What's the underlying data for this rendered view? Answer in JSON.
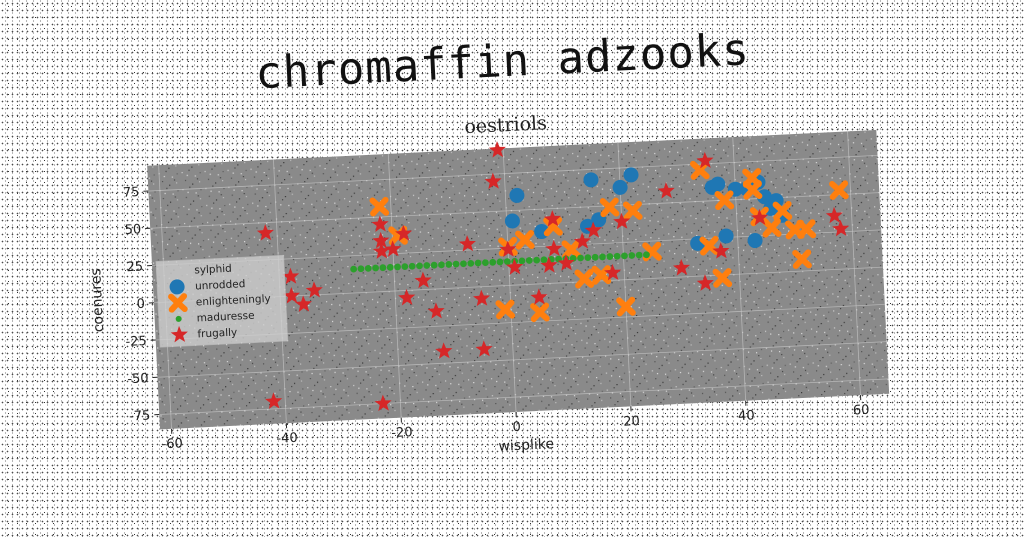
{
  "chart_data": {
    "type": "scatter",
    "super_title": "chromaffin adzooks",
    "title": "oestriols",
    "xlabel": "wisplike",
    "ylabel": "coenures",
    "xlim": [
      -62,
      65
    ],
    "ylim": [
      -85,
      92
    ],
    "xticks": [
      -60,
      -40,
      -20,
      0,
      20,
      40,
      60
    ],
    "yticks": [
      -75,
      -50,
      -25,
      0,
      25,
      50,
      75
    ],
    "grid": true,
    "legend_title": "sylphid",
    "legend_position": "left",
    "background": "#8a8a8a",
    "series": [
      {
        "name": "unrodded",
        "marker": "circle",
        "color": "#1f77b4",
        "points": [
          [
            2,
            60
          ],
          [
            1,
            43
          ],
          [
            6,
            35
          ],
          [
            14,
            37
          ],
          [
            15,
            68
          ],
          [
            20,
            62
          ],
          [
            22,
            70
          ],
          [
            33,
            22
          ],
          [
            36,
            59
          ],
          [
            37,
            61
          ],
          [
            38,
            26
          ],
          [
            40,
            57
          ],
          [
            42,
            57
          ],
          [
            43,
            22
          ],
          [
            44,
            61
          ],
          [
            45,
            51
          ],
          [
            46,
            43
          ],
          [
            47,
            48
          ],
          [
            48,
            38
          ],
          [
            16,
            41
          ]
        ]
      },
      {
        "name": "enlighteningly",
        "marker": "x",
        "color": "#ff7f0e",
        "points": [
          [
            -22,
            57
          ],
          [
            -19,
            37
          ],
          [
            -1,
            -16
          ],
          [
            0,
            26
          ],
          [
            3,
            30
          ],
          [
            5,
            -19
          ],
          [
            8,
            38
          ],
          [
            11,
            22
          ],
          [
            13,
            2
          ],
          [
            16,
            4
          ],
          [
            18,
            49
          ],
          [
            20,
            -18
          ],
          [
            22,
            46
          ],
          [
            25,
            18
          ],
          [
            34,
            71
          ],
          [
            35,
            20
          ],
          [
            37,
            -2
          ],
          [
            38,
            50
          ],
          [
            43,
            64
          ],
          [
            43,
            56
          ],
          [
            44,
            38
          ],
          [
            46,
            30
          ],
          [
            48,
            41
          ],
          [
            50,
            28
          ],
          [
            52,
            28
          ],
          [
            51,
            8
          ],
          [
            58,
            53
          ]
        ]
      },
      {
        "name": "maduresse",
        "marker": "point",
        "color": "#2ca02c",
        "line": {
          "x_from": -27,
          "x_to": 24,
          "y": 16
        }
      },
      {
        "name": "frugally",
        "marker": "star",
        "color": "#d62728",
        "points": [
          [
            -42,
            -70
          ],
          [
            -42,
            43
          ],
          [
            -38,
            13
          ],
          [
            -38,
            0
          ],
          [
            -36,
            -6
          ],
          [
            -34,
            3
          ],
          [
            -23,
            -75
          ],
          [
            -22,
            34
          ],
          [
            -22,
            27
          ],
          [
            -22,
            45
          ],
          [
            -20,
            28
          ],
          [
            -18,
            38
          ],
          [
            -18,
            -5
          ],
          [
            -15,
            6
          ],
          [
            -13,
            -15
          ],
          [
            -12,
            -42
          ],
          [
            -7,
            29
          ],
          [
            -5,
            -8
          ],
          [
            -5,
            -42
          ],
          [
            -2,
            70
          ],
          [
            -1,
            91
          ],
          [
            0,
            24
          ],
          [
            1,
            12
          ],
          [
            5,
            -9
          ],
          [
            7,
            12
          ],
          [
            8,
            23
          ],
          [
            8,
            43
          ],
          [
            10,
            13
          ],
          [
            13,
            27
          ],
          [
            15,
            34
          ],
          [
            18,
            5
          ],
          [
            20,
            39
          ],
          [
            28,
            58
          ],
          [
            30,
            6
          ],
          [
            34,
            -5
          ],
          [
            35,
            77
          ],
          [
            37,
            16
          ],
          [
            44,
            37
          ],
          [
            57,
            36
          ],
          [
            58,
            27
          ]
        ]
      }
    ]
  }
}
